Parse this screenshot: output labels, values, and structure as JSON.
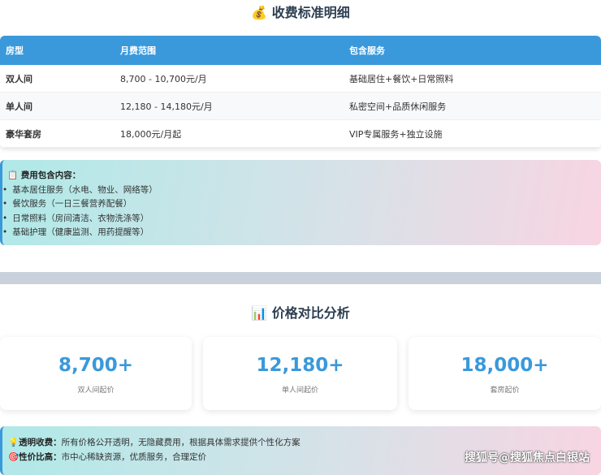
{
  "fee_section": {
    "icon": "money-bag-icon",
    "title": "💰 收费标准明细",
    "headers": [
      "房型",
      "月费范围",
      "包含服务"
    ],
    "rows": [
      [
        "双人间",
        "8,700 - 10,700元/月",
        "基础居住+餐饮+日常照料"
      ],
      [
        "单人间",
        "12,180 - 14,180元/月",
        "私密空间+品质休闲服务"
      ],
      [
        "豪华套房",
        "18,000元/月起",
        "VIP专属服务+独立设施"
      ]
    ]
  },
  "includes": {
    "icon": "clipboard-icon",
    "title": "📋 费用包含内容：",
    "items": [
      "基本居住服务（水电、物业、网络等）",
      "餐饮服务（一日三餐营养配餐）",
      "日常照料（房间清洁、衣物洗涤等）",
      "基础护理（健康监测、用药提醒等）"
    ]
  },
  "compare": {
    "icon": "bar-chart-icon",
    "title": "📊 价格对比分析",
    "cards": [
      {
        "value": "8,700+",
        "label": "双人间起价"
      },
      {
        "value": "12,180+",
        "label": "单人间起价"
      },
      {
        "value": "18,000+",
        "label": "套房起价"
      }
    ]
  },
  "notes": [
    {
      "icon": "💡",
      "label": "透明收费：",
      "text": "所有价格公开透明，无隐藏费用，根据具体需求提供个性化方案"
    },
    {
      "icon": "🎯",
      "label": "性价比高：",
      "text": "市中心稀缺资源，优质服务，合理定价"
    }
  ],
  "watermark": "搜狐号@搜狐焦点白银站",
  "colors": {
    "accent": "#3a99db"
  }
}
